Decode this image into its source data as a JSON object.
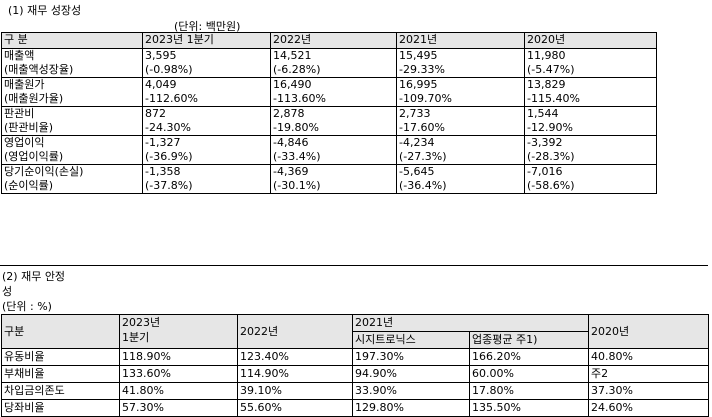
{
  "section1": {
    "title": "(1) 재무 성장성",
    "unit": "(단위: 백만원)",
    "headers": [
      "구 분",
      "2023년 1분기",
      "2022년",
      "2021년",
      "2020년"
    ],
    "rows": [
      {
        "label": [
          "매출액",
          "(매출액성장율)"
        ],
        "values": [
          [
            "3,595",
            "(-0.98%)"
          ],
          [
            "14,521",
            "(-6.28%)"
          ],
          [
            "15,495",
            "-29.33%"
          ],
          [
            "11,980",
            "(-5.47%)"
          ]
        ]
      },
      {
        "label": [
          "매출원가",
          "(매출원가율)"
        ],
        "values": [
          [
            "4,049",
            "-112.60%"
          ],
          [
            "16,490",
            "-113.60%"
          ],
          [
            "16,995",
            "-109.70%"
          ],
          [
            "13,829",
            "-115.40%"
          ]
        ]
      },
      {
        "label": [
          "판관비",
          "(판관비율)"
        ],
        "values": [
          [
            "872",
            "-24.30%"
          ],
          [
            "2,878",
            "-19.80%"
          ],
          [
            "2,733",
            "-17.60%"
          ],
          [
            "1,544",
            "-12.90%"
          ]
        ]
      },
      {
        "label": [
          "영업이익",
          "(영업이익률)"
        ],
        "values": [
          [
            "-1,327",
            "(-36.9%)"
          ],
          [
            "-4,846",
            "(-33.4%)"
          ],
          [
            "-4,234",
            "(-27.3%)"
          ],
          [
            "-3,392",
            "(-28.3%)"
          ]
        ]
      },
      {
        "label": [
          "당기순이익(손실)",
          "(순이익률)"
        ],
        "values": [
          [
            "-1,358",
            "(-37.8%)"
          ],
          [
            "-4,369",
            "(-30.1%)"
          ],
          [
            "-5,645",
            "(-36.4%)"
          ],
          [
            "-7,016",
            "(-58.6%)"
          ]
        ]
      }
    ]
  },
  "section2": {
    "title": "(2) 재무 안정",
    "title_cont": "성",
    "unit": "(단위 : %)",
    "headers": {
      "gubun": "구분",
      "q1_2023": [
        "2023년",
        "1분기"
      ],
      "y2022": "2022년",
      "y2021": "2021년",
      "y2021_sub": [
        "시지트로닉스",
        "업종평균 주1)"
      ],
      "y2020": "2020년"
    },
    "rows": [
      {
        "label": "유동비율",
        "values": [
          "118.90%",
          "123.40%",
          "197.30%",
          "166.20%",
          "40.80%"
        ]
      },
      {
        "label": "부채비율",
        "values": [
          "133.60%",
          "114.90%",
          "94.90%",
          "60.00%",
          "주2"
        ]
      },
      {
        "label": "차입금의존도",
        "values": [
          "41.80%",
          "39.10%",
          "33.90%",
          "17.80%",
          "37.30%"
        ]
      },
      {
        "label": "당좌비율",
        "values": [
          "57.30%",
          "55.60%",
          "129.80%",
          "135.50%",
          "24.60%"
        ]
      }
    ]
  }
}
